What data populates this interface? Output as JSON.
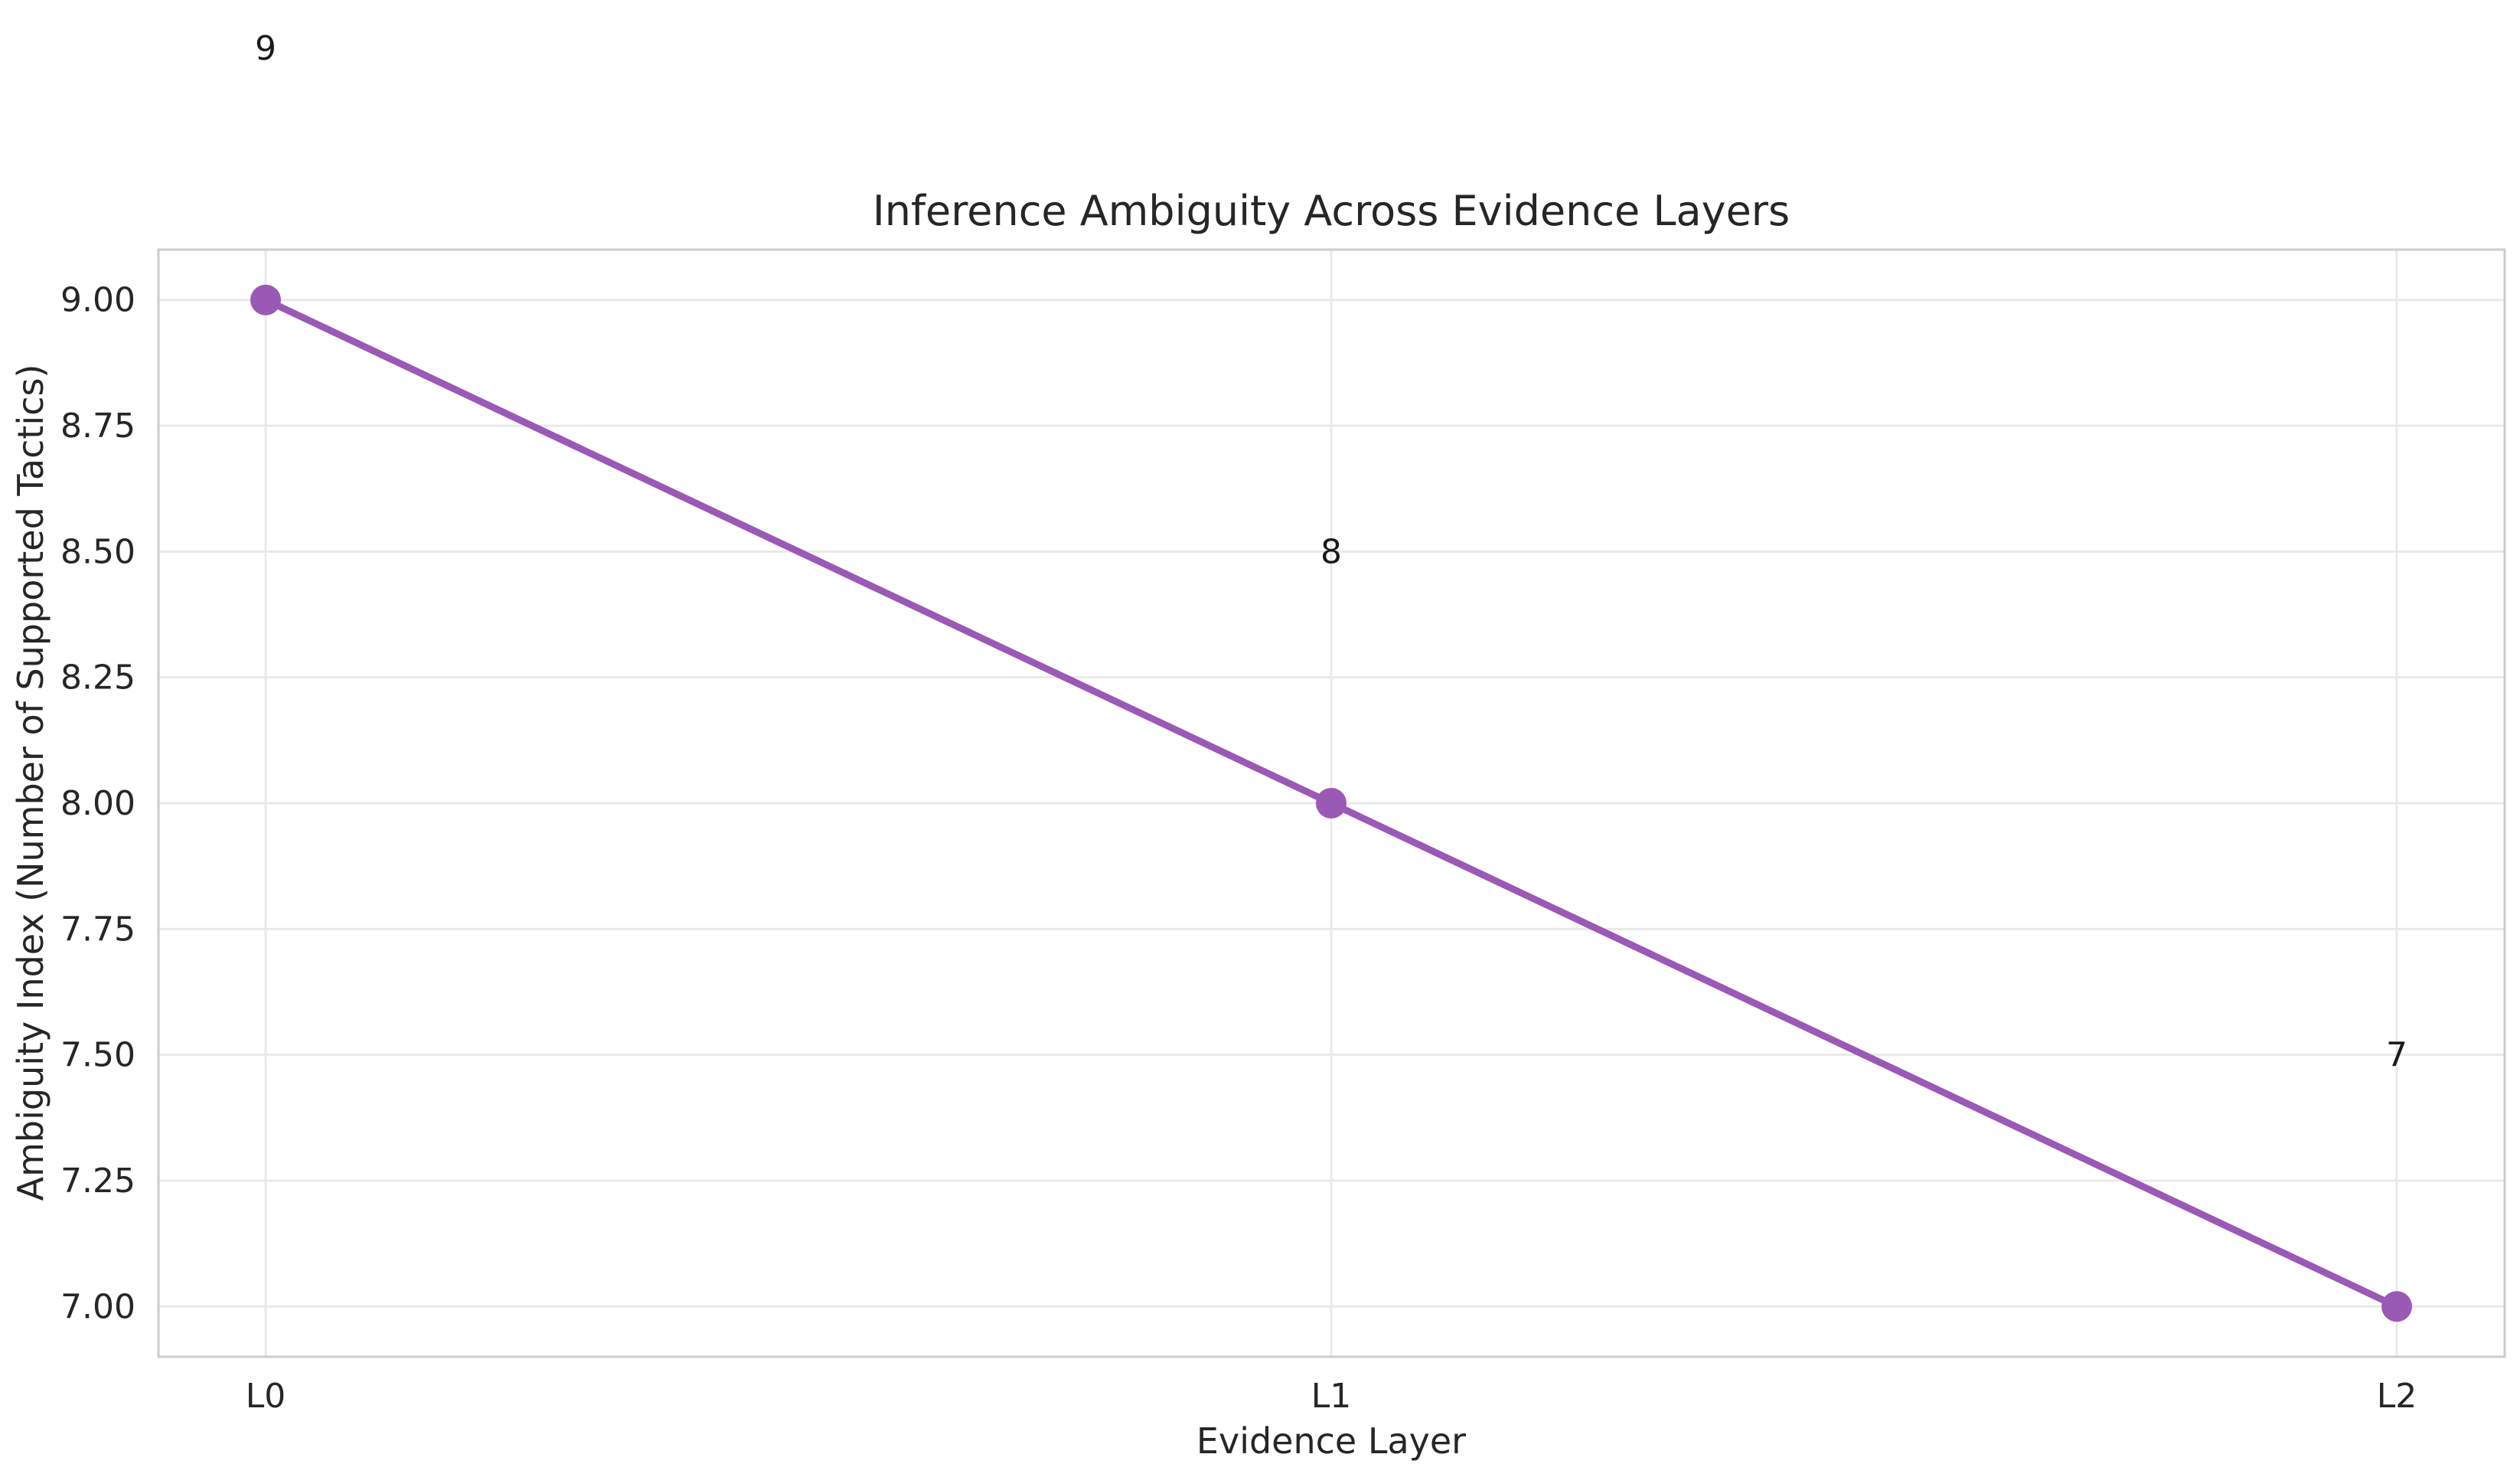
{
  "chart_data": {
    "type": "line",
    "title": "Inference Ambiguity Across Evidence Layers",
    "xlabel": "Evidence Layer",
    "ylabel": "Ambiguity Index (Number of Supported Tactics)",
    "categories": [
      "L0",
      "L1",
      "L2"
    ],
    "series": [
      {
        "values": [
          9,
          8,
          7
        ],
        "color": "#9b59b6",
        "marker": "circle",
        "data_labels": [
          "9",
          "8",
          "7"
        ]
      }
    ],
    "ylim": [
      6.9,
      9.1
    ],
    "yticks": [
      7.0,
      7.25,
      7.5,
      7.75,
      8.0,
      8.25,
      8.5,
      8.75,
      9.0
    ],
    "ytick_labels": [
      "7.00",
      "7.25",
      "7.50",
      "7.75",
      "8.00",
      "8.25",
      "8.50",
      "8.75",
      "9.00"
    ],
    "grid": true,
    "legend": "none"
  }
}
